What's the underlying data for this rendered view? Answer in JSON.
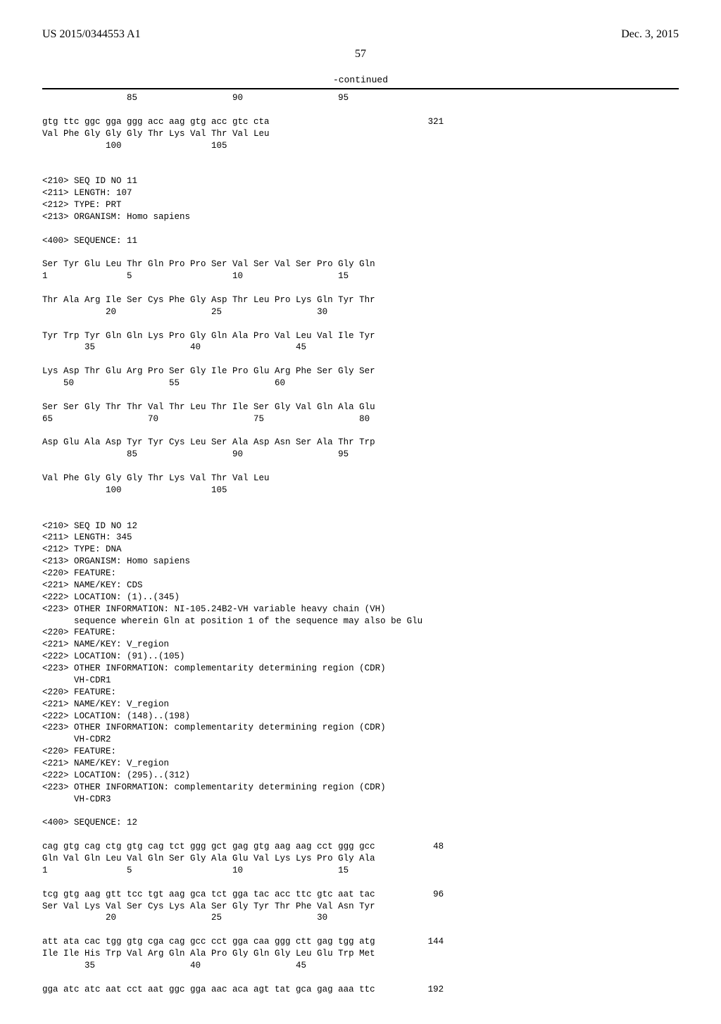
{
  "header": {
    "pub_number": "US 2015/0344553 A1",
    "pub_date": "Dec. 3, 2015"
  },
  "page_number": "57",
  "continued_label": "-continued",
  "sequence_text": "                85                  90                  95\n\ngtg ttc ggc gga ggg acc aag gtg acc gtc cta                              321\nVal Phe Gly Gly Gly Thr Lys Val Thr Val Leu\n            100                 105\n\n\n<210> SEQ ID NO 11\n<211> LENGTH: 107\n<212> TYPE: PRT\n<213> ORGANISM: Homo sapiens\n\n<400> SEQUENCE: 11\n\nSer Tyr Glu Leu Thr Gln Pro Pro Ser Val Ser Val Ser Pro Gly Gln\n1               5                   10                  15\n\nThr Ala Arg Ile Ser Cys Phe Gly Asp Thr Leu Pro Lys Gln Tyr Thr\n            20                  25                  30\n\nTyr Trp Tyr Gln Gln Lys Pro Gly Gln Ala Pro Val Leu Val Ile Tyr\n        35                  40                  45\n\nLys Asp Thr Glu Arg Pro Ser Gly Ile Pro Glu Arg Phe Ser Gly Ser\n    50                  55                  60\n\nSer Ser Gly Thr Thr Val Thr Leu Thr Ile Ser Gly Val Gln Ala Glu\n65                  70                  75                  80\n\nAsp Glu Ala Asp Tyr Tyr Cys Leu Ser Ala Asp Asn Ser Ala Thr Trp\n                85                  90                  95\n\nVal Phe Gly Gly Gly Thr Lys Val Thr Val Leu\n            100                 105\n\n\n<210> SEQ ID NO 12\n<211> LENGTH: 345\n<212> TYPE: DNA\n<213> ORGANISM: Homo sapiens\n<220> FEATURE:\n<221> NAME/KEY: CDS\n<222> LOCATION: (1)..(345)\n<223> OTHER INFORMATION: NI-105.24B2-VH variable heavy chain (VH)\n      sequence wherein Gln at position 1 of the sequence may also be Glu\n<220> FEATURE:\n<221> NAME/KEY: V_region\n<222> LOCATION: (91)..(105)\n<223> OTHER INFORMATION: complementarity determining region (CDR)\n      VH-CDR1\n<220> FEATURE:\n<221> NAME/KEY: V_region\n<222> LOCATION: (148)..(198)\n<223> OTHER INFORMATION: complementarity determining region (CDR)\n      VH-CDR2\n<220> FEATURE:\n<221> NAME/KEY: V_region\n<222> LOCATION: (295)..(312)\n<223> OTHER INFORMATION: complementarity determining region (CDR)\n      VH-CDR3\n\n<400> SEQUENCE: 12\n\ncag gtg cag ctg gtg cag tct ggg gct gag gtg aag aag cct ggg gcc           48\nGln Val Gln Leu Val Gln Ser Gly Ala Glu Val Lys Lys Pro Gly Ala\n1               5                   10                  15\n\ntcg gtg aag gtt tcc tgt aag gca tct gga tac acc ttc gtc aat tac           96\nSer Val Lys Val Ser Cys Lys Ala Ser Gly Tyr Thr Phe Val Asn Tyr\n            20                  25                  30\n\natt ata cac tgg gtg cga cag gcc cct gga caa ggg ctt gag tgg atg          144\nIle Ile His Trp Val Arg Gln Ala Pro Gly Gln Gly Leu Glu Trp Met\n        35                  40                  45\n\ngga atc atc aat cct aat ggc gga aac aca agt tat gca gag aaa ttc          192"
}
